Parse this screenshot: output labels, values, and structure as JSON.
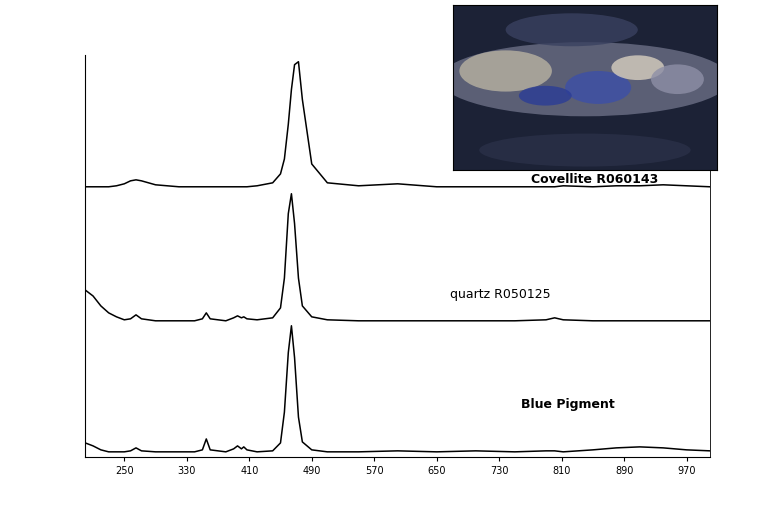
{
  "chart_data": {
    "type": "line",
    "x": [
      200,
      210,
      220,
      230,
      240,
      250,
      258,
      265,
      272,
      290,
      320,
      340,
      350,
      355,
      360,
      380,
      390,
      395,
      400,
      403,
      407,
      420,
      440,
      450,
      455,
      460,
      464,
      468,
      473,
      478,
      490,
      510,
      550,
      600,
      650,
      700,
      750,
      790,
      801,
      812,
      850,
      880,
      910,
      940,
      970,
      1000
    ],
    "series": [
      {
        "name": "Covellite R060143",
        "color": "#000000",
        "values": [
          2.72,
          2.72,
          2.72,
          2.72,
          2.73,
          2.75,
          2.78,
          2.79,
          2.78,
          2.74,
          2.72,
          2.72,
          2.72,
          2.72,
          2.72,
          2.72,
          2.72,
          2.72,
          2.72,
          2.72,
          2.72,
          2.73,
          2.76,
          2.85,
          3.0,
          3.35,
          3.7,
          3.95,
          3.98,
          3.6,
          2.95,
          2.76,
          2.73,
          2.75,
          2.72,
          2.72,
          2.72,
          2.72,
          2.72,
          2.73,
          2.72,
          2.73,
          2.73,
          2.74,
          2.73,
          2.72
        ]
      },
      {
        "name": "quartz R050125",
        "color": "#000000",
        "values": [
          1.68,
          1.62,
          1.52,
          1.45,
          1.41,
          1.38,
          1.39,
          1.43,
          1.39,
          1.37,
          1.37,
          1.37,
          1.39,
          1.45,
          1.39,
          1.37,
          1.4,
          1.42,
          1.4,
          1.41,
          1.39,
          1.38,
          1.4,
          1.5,
          1.8,
          2.45,
          2.65,
          2.35,
          1.8,
          1.52,
          1.41,
          1.38,
          1.37,
          1.37,
          1.37,
          1.37,
          1.37,
          1.38,
          1.4,
          1.38,
          1.37,
          1.37,
          1.37,
          1.37,
          1.37,
          1.37
        ]
      },
      {
        "name": "Blue Pigment",
        "color": "#000000",
        "values": [
          0.14,
          0.11,
          0.07,
          0.05,
          0.05,
          0.05,
          0.06,
          0.09,
          0.06,
          0.05,
          0.05,
          0.05,
          0.07,
          0.18,
          0.07,
          0.05,
          0.08,
          0.11,
          0.08,
          0.1,
          0.07,
          0.05,
          0.06,
          0.14,
          0.45,
          1.05,
          1.32,
          1.0,
          0.4,
          0.15,
          0.07,
          0.05,
          0.05,
          0.06,
          0.05,
          0.06,
          0.05,
          0.06,
          0.06,
          0.05,
          0.07,
          0.09,
          0.1,
          0.09,
          0.07,
          0.06
        ]
      }
    ],
    "xlim": [
      200,
      1000
    ],
    "xticks": [
      250,
      330,
      410,
      490,
      570,
      650,
      730,
      810,
      890,
      970
    ],
    "ylim": [
      0,
      4.05
    ],
    "tick_labels": "x",
    "grid": false
  }
}
